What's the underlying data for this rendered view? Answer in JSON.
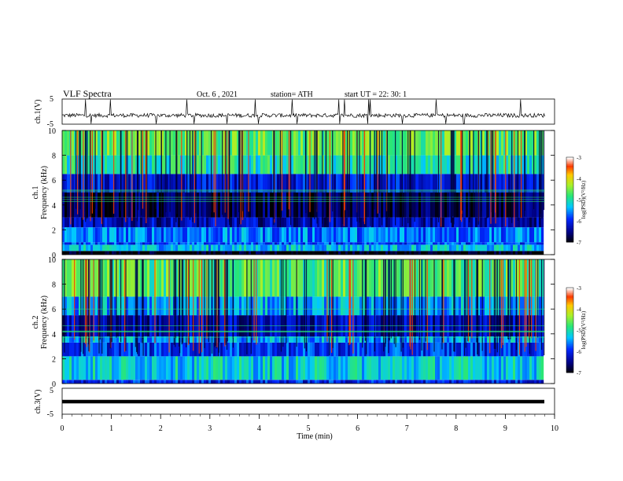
{
  "header": {
    "title": "VLF  Spectra",
    "date": "Oct. 6  , 2021",
    "station": "station= ATH",
    "start": "start  UT  =    22: 30: 1"
  },
  "chart_data": [
    {
      "type": "line",
      "name": "ch1-waveform",
      "ylabel": "ch.1(V)",
      "y_ticks": [
        "5",
        "-5"
      ],
      "ylim": [
        -5,
        5
      ],
      "x_range_min": [
        0,
        9.8
      ],
      "description_values": "noisy baseline near -1.5 V with sferic spikes to +5 and -5 V",
      "color": "#000000"
    },
    {
      "type": "heatmap",
      "name": "ch1-spectrogram",
      "ylabel": "ch.1\nFrequency  (kHz)",
      "ylabel_parts": [
        "ch.1",
        "Frequency  (kHz)"
      ],
      "y_ticks": [
        "0",
        "2",
        "4",
        "6",
        "8",
        "10"
      ],
      "ylim_khz": [
        0,
        10
      ],
      "x_range_min": [
        0,
        9.8
      ],
      "colorbar": {
        "label": "log(PSD)(V²/Hz)",
        "ticks": [
          "-3",
          "-4",
          "-5",
          "-6",
          "-7"
        ],
        "range": [
          -7,
          -3
        ]
      },
      "bands_khz_to_log_psd": [
        {
          "f": [
            0,
            0.3
          ],
          "v": -7
        },
        {
          "f": [
            0.3,
            0.8
          ],
          "v": -5.3
        },
        {
          "f": [
            0.8,
            1.0
          ],
          "v": -5.8
        },
        {
          "f": [
            1.0,
            2.2
          ],
          "v": -5.6
        },
        {
          "f": [
            2.2,
            3.0
          ],
          "v": -6.3
        },
        {
          "f": [
            3.0,
            5.0
          ],
          "v": -6.7
        },
        {
          "f": [
            5.0,
            6.5
          ],
          "v": -6.1
        },
        {
          "f": [
            6.5,
            8.0
          ],
          "v": -5.0
        },
        {
          "f": [
            8.0,
            10.0
          ],
          "v": -4.6
        }
      ]
    },
    {
      "type": "heatmap",
      "name": "ch2-spectrogram",
      "ylabel": "ch.2\nFrequency  (kHz)",
      "ylabel_parts": [
        "ch.2",
        "Frequency  (kHz)"
      ],
      "y_ticks": [
        "0",
        "2",
        "4",
        "6",
        "8",
        "10"
      ],
      "ylim_khz": [
        0,
        10
      ],
      "x_range_min": [
        0,
        9.8
      ],
      "colorbar": {
        "label": "log(PSD)(V²/Hz)",
        "ticks": [
          "-3",
          "-4",
          "-5",
          "-6",
          "-7"
        ],
        "range": [
          -7,
          -3
        ]
      },
      "bands_khz_to_log_psd": [
        {
          "f": [
            0,
            0.3
          ],
          "v": -6.0
        },
        {
          "f": [
            0.3,
            2.2
          ],
          "v": -5.2
        },
        {
          "f": [
            2.2,
            3.3
          ],
          "v": -5.9
        },
        {
          "f": [
            3.3,
            3.8
          ],
          "v": -5.4
        },
        {
          "f": [
            3.8,
            5.5
          ],
          "v": -6.3
        },
        {
          "f": [
            5.5,
            7.0
          ],
          "v": -5.4
        },
        {
          "f": [
            7.0,
            10.0
          ],
          "v": -4.7
        }
      ]
    },
    {
      "type": "line",
      "name": "ch3-waveform",
      "ylabel": "ch.3(V)",
      "y_ticks": [
        "5",
        "-5"
      ],
      "ylim": [
        -5,
        5
      ],
      "x_range_min": [
        0,
        9.8
      ],
      "description_values": "flat thick line near -2 V",
      "color": "#000000"
    }
  ],
  "x_axis": {
    "label": "Time  (min)",
    "ticks": [
      "0",
      "1",
      "2",
      "3",
      "4",
      "5",
      "6",
      "7",
      "8",
      "9",
      "10"
    ],
    "range": [
      0,
      10
    ]
  }
}
